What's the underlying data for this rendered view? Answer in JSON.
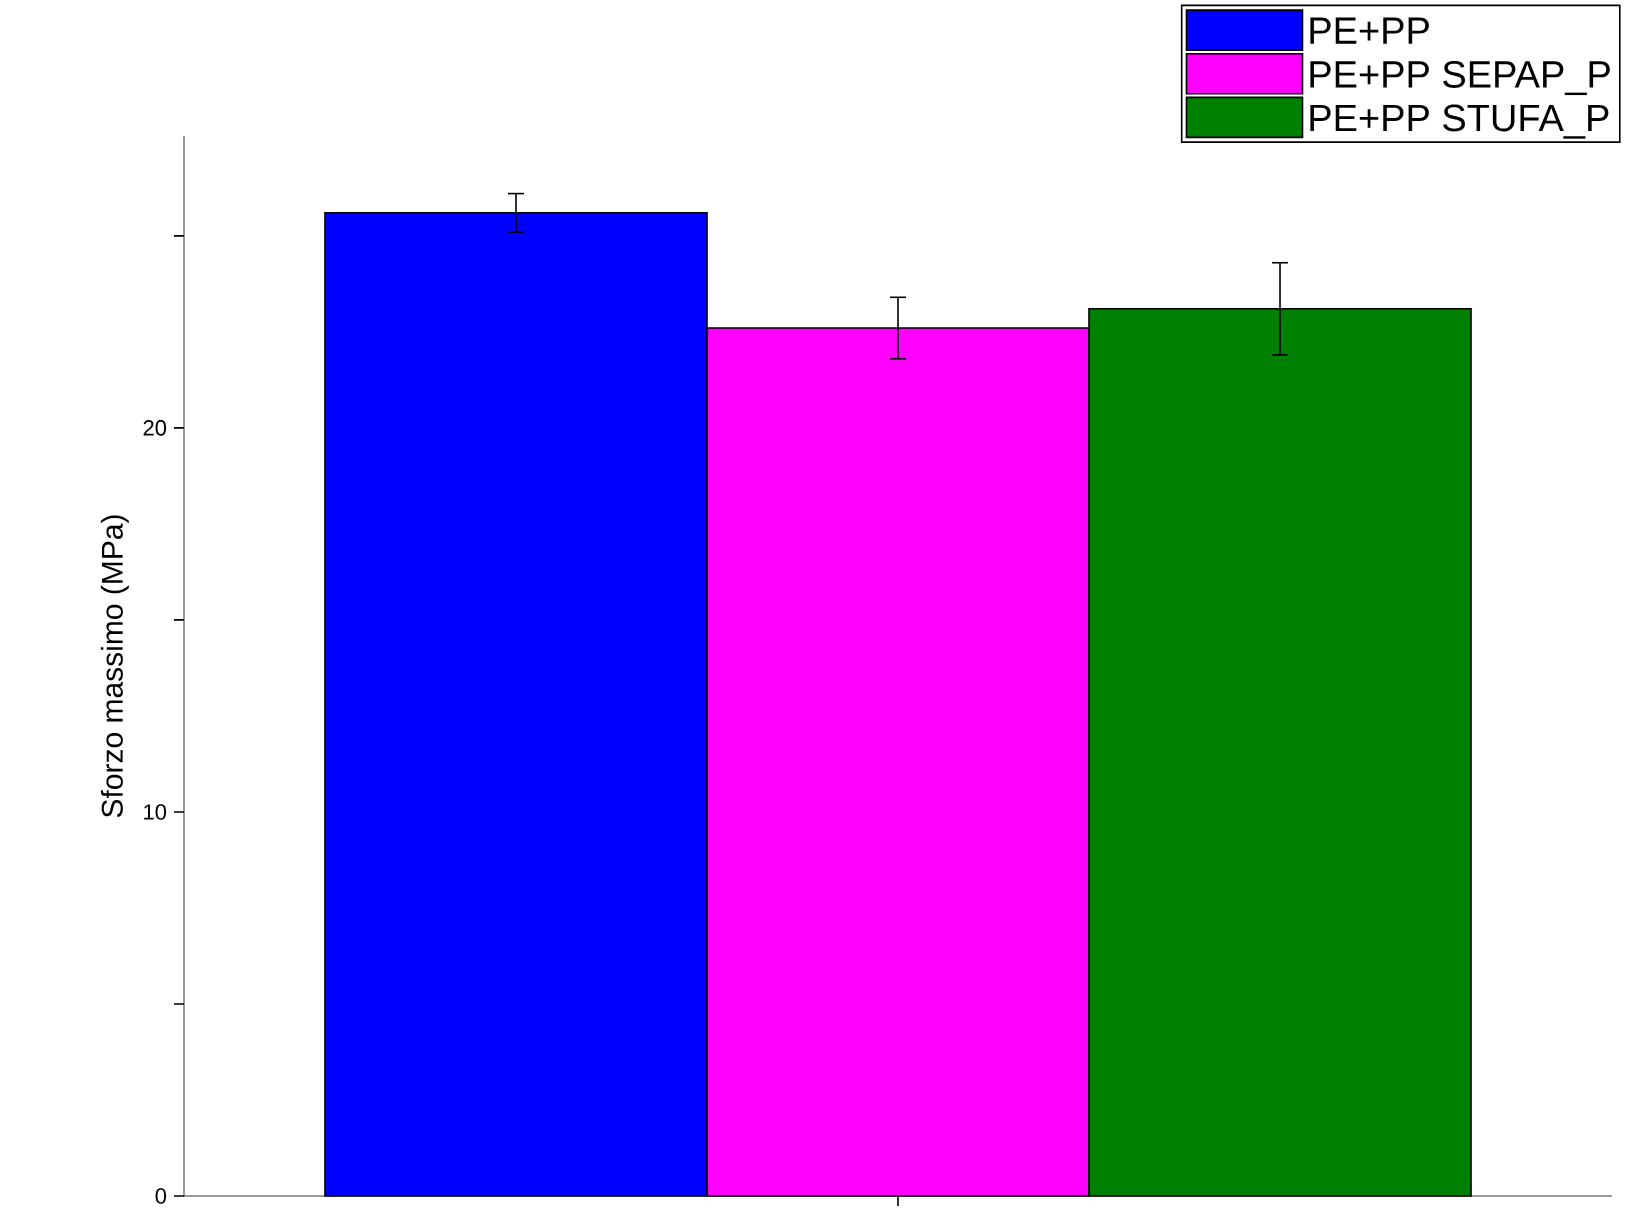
{
  "chart_data": {
    "type": "bar",
    "ylabel": "Sforzo massimo (MPa)",
    "categories": [
      null
    ],
    "series": [
      {
        "name": "PE+PP",
        "color": "#0000ff",
        "values": [
          25.6
        ],
        "errors": [
          0.5
        ]
      },
      {
        "name": "PE+PP SEPAP_P",
        "color": "#ff00ff",
        "values": [
          22.6
        ],
        "errors": [
          0.8
        ]
      },
      {
        "name": "PE+PP STUFA_P",
        "color": "#008000",
        "values": [
          23.1
        ],
        "errors": [
          1.2
        ]
      }
    ],
    "ylim": [
      0,
      27.6
    ],
    "yticks": [
      0,
      {
        "value": 5,
        "label": null
      },
      10,
      {
        "value": 15,
        "label": null
      },
      20,
      {
        "value": 25,
        "label": null
      }
    ],
    "tick_labels": "y",
    "legend": "top right"
  }
}
